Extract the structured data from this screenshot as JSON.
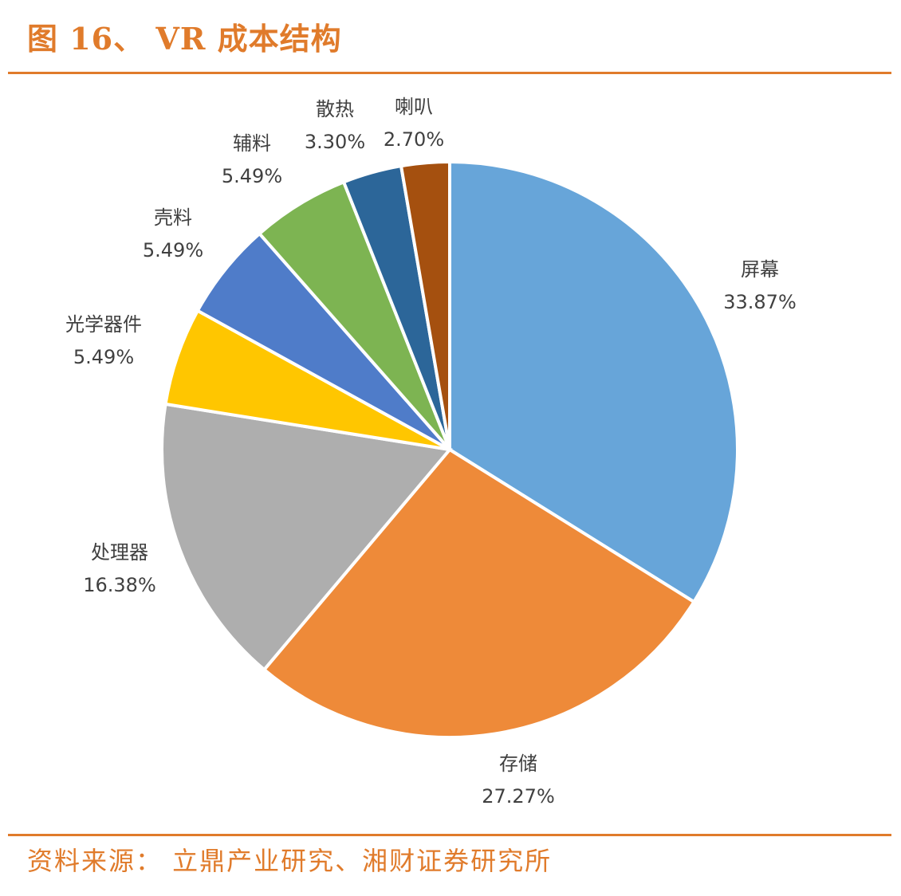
{
  "title": "图 16、 VR 成本结构",
  "source": "资料来源： 立鼎产业研究、湘财证券研究所",
  "chart_data": {
    "type": "pie",
    "title": "VR 成本结构",
    "categories": [
      "屏幕",
      "存储",
      "处理器",
      "光学器件",
      "壳料",
      "辅料",
      "散热",
      "喇叭"
    ],
    "values": [
      33.87,
      27.27,
      16.38,
      5.49,
      5.49,
      5.49,
      3.3,
      2.7
    ],
    "value_labels": [
      "33.87%",
      "27.27%",
      "16.38%",
      "5.49%",
      "5.49%",
      "5.49%",
      "3.30%",
      "2.70%"
    ],
    "colors": [
      "#67A5D9",
      "#EE8A39",
      "#AEAEAE",
      "#FFC600",
      "#4F7CC9",
      "#7DB452",
      "#2C6699",
      "#A5500F"
    ],
    "start": "top, clockwise",
    "legend": "none"
  }
}
